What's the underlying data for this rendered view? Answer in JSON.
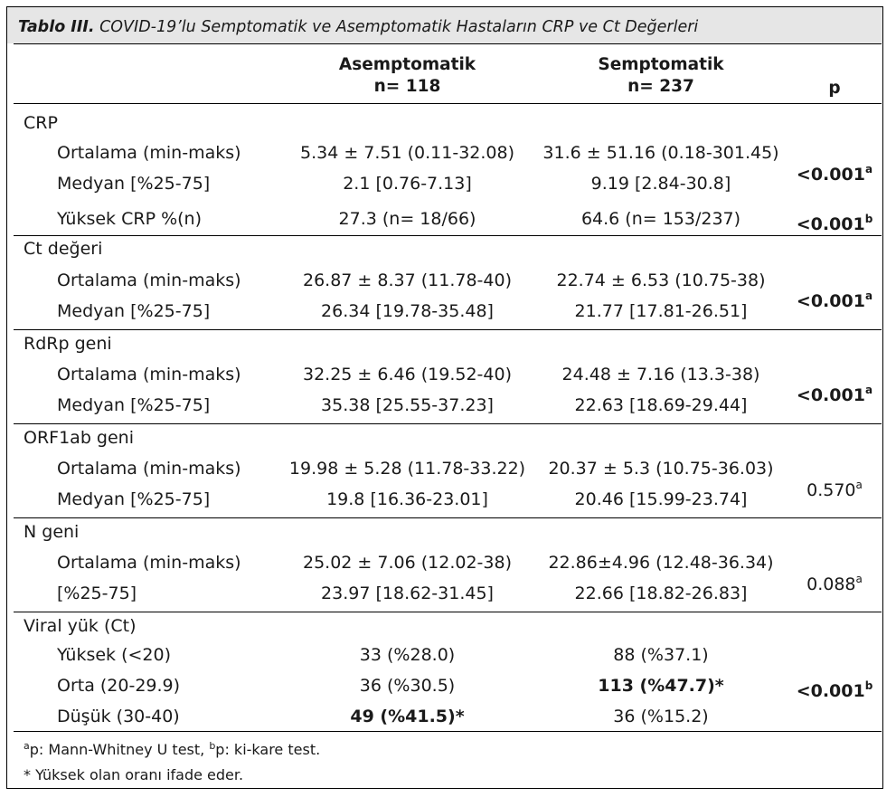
{
  "table": {
    "title_prefix": "Tablo III.",
    "title_text": " COVID-19’lu Semptomatik ve Asemptomatik Hastaların CRP ve Ct Değerleri",
    "col1_header": "Asemptomatik",
    "col1_n": "n= 118",
    "col2_header": "Semptomatik",
    "col2_n": "n= 237",
    "col3_header": "p",
    "sections": [
      {
        "label": "CRP",
        "rows": [
          {
            "label": "Ortalama (min-maks)",
            "a": "5.34 ± 7.51 (0.11-32.08)",
            "s": "31.6 ± 51.16 (0.18-301.45)"
          },
          {
            "label": "Medyan [%25-75]",
            "a": "2.1 [0.76-7.13]",
            "s": "9.19 [2.84-30.8]"
          },
          {
            "label": "Yüksek CRP %(n)",
            "a": "27.3 (n= 18/66)",
            "s": "64.6 (n= 153/237)"
          }
        ],
        "p": [
          {
            "value": "<0.001",
            "sup": "a"
          },
          {
            "value": "<0.001",
            "sup": "b"
          }
        ]
      },
      {
        "label": "Ct değeri",
        "rows": [
          {
            "label": "Ortalama (min-maks)",
            "a": "26.87 ± 8.37 (11.78-40)",
            "s": "22.74 ± 6.53 (10.75-38)"
          },
          {
            "label": "Medyan [%25-75]",
            "a": "26.34 [19.78-35.48]",
            "s": "21.77 [17.81-26.51]"
          }
        ],
        "p": [
          {
            "value": "<0.001",
            "sup": "a"
          }
        ]
      },
      {
        "label": "RdRp geni",
        "rows": [
          {
            "label": "Ortalama (min-maks)",
            "a": "32.25 ± 6.46 (19.52-40)",
            "s": "24.48 ± 7.16 (13.3-38)"
          },
          {
            "label": "Medyan [%25-75]",
            "a": "35.38 [25.55-37.23]",
            "s": "22.63 [18.69-29.44]"
          }
        ],
        "p": [
          {
            "value": "<0.001",
            "sup": "a"
          }
        ]
      },
      {
        "label": "ORF1ab geni",
        "rows": [
          {
            "label": "Ortalama (min-maks)",
            "a": "19.98 ± 5.28 (11.78-33.22)",
            "s": "20.37 ± 5.3 (10.75-36.03)"
          },
          {
            "label": "Medyan [%25-75]",
            "a": "19.8 [16.36-23.01]",
            "s": "20.46 [15.99-23.74]"
          }
        ],
        "p": [
          {
            "value": "0.570",
            "sup": "a"
          }
        ]
      },
      {
        "label": "N geni",
        "rows": [
          {
            "label": "Ortalama (min-maks)",
            "a": "25.02 ± 7.06 (12.02-38)",
            "s": "22.86±4.96 (12.48-36.34)"
          },
          {
            "label": "[%25-75]",
            "a": "23.97 [18.62-31.45]",
            "s": "22.66 [18.82-26.83]"
          }
        ],
        "p": [
          {
            "value": "0.088",
            "sup": "a"
          }
        ]
      },
      {
        "label": "Viral yük (Ct)",
        "rows": [
          {
            "label": "Yüksek (<20)",
            "a": "33 (%28.0)",
            "s": "88 (%37.1)"
          },
          {
            "label": "Orta (20-29.9)",
            "a": "36 (%30.5)",
            "s": "113 (%47.7)*"
          },
          {
            "label": "Düşük (30-40)",
            "a": "49 (%41.5)*",
            "s": "36 (%15.2)"
          }
        ],
        "p": [
          {
            "value": "<0.001",
            "sup": "b"
          }
        ]
      }
    ],
    "footnote1_sup_a": "a",
    "footnote1_a": "p: Mann-Whitney U test, ",
    "footnote1_sup_b": "b",
    "footnote1_b": "p: ki-kare test.",
    "footnote2": "* Yüksek olan oranı ifade eder."
  }
}
